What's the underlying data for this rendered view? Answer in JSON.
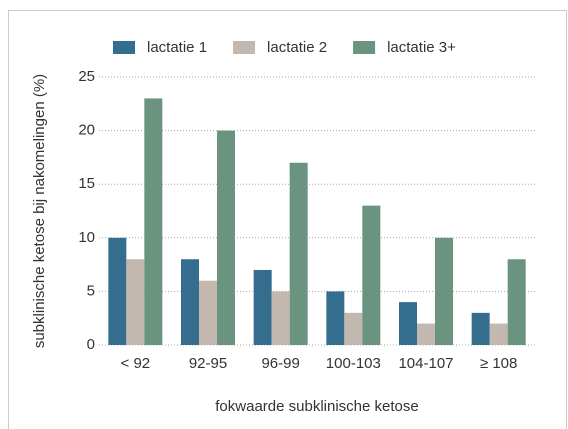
{
  "chart_data": {
    "type": "bar",
    "x_label": "fokwaarde subklinische ketose",
    "y_label": "subklinische ketose bij nakomelingen (%)",
    "categories": [
      "< 92",
      "92-95",
      "96-99",
      "100-103",
      "104-107",
      "≥ 108"
    ],
    "series": [
      {
        "name": "lactatie 1",
        "color": "#356d8f",
        "values": [
          10,
          8,
          7,
          5,
          4,
          3
        ]
      },
      {
        "name": "lactatie 2",
        "color": "#c2b8b0",
        "values": [
          8,
          6,
          5,
          3,
          2,
          2
        ]
      },
      {
        "name": "lactatie 3+",
        "color": "#6a9480",
        "values": [
          23,
          20,
          17,
          13,
          10,
          8
        ]
      }
    ],
    "ylim": [
      0,
      25
    ],
    "yticks": [
      0,
      5,
      10,
      15,
      20,
      25
    ],
    "grid": true,
    "legend": "top"
  }
}
